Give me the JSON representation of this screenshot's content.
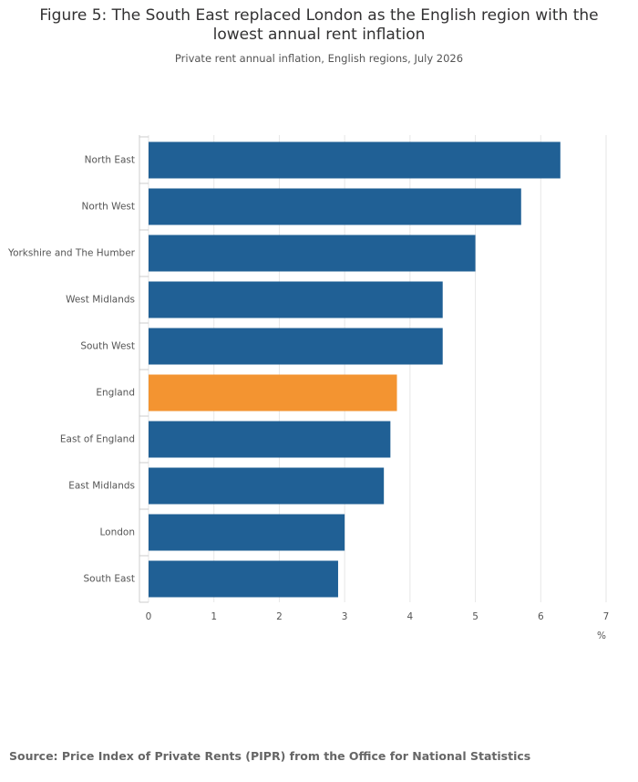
{
  "chart_data": {
    "type": "bar",
    "orientation": "horizontal",
    "title": "Figure 5: The South East replaced London as the English region with the lowest annual rent inflation",
    "subtitle": "Private rent annual inflation, English regions, July 2026",
    "x_label": "%",
    "source": "Source: Price Index of Private Rents (PIPR) from the Office for National Statistics",
    "categories": [
      "North East",
      "North West",
      "Yorkshire and The Humber",
      "West Midlands",
      "South West",
      "England",
      "East of England",
      "East Midlands",
      "London",
      "South East"
    ],
    "values": [
      6.3,
      5.7,
      5.0,
      4.5,
      4.5,
      3.8,
      3.7,
      3.6,
      3.0,
      2.9
    ],
    "colors": [
      "#206095",
      "#206095",
      "#206095",
      "#206095",
      "#206095",
      "#f39431",
      "#206095",
      "#206095",
      "#206095",
      "#206095"
    ],
    "xlim": [
      0,
      7
    ],
    "xticks": [
      0,
      1,
      2,
      3,
      4,
      5,
      6,
      7
    ],
    "grid": true
  }
}
